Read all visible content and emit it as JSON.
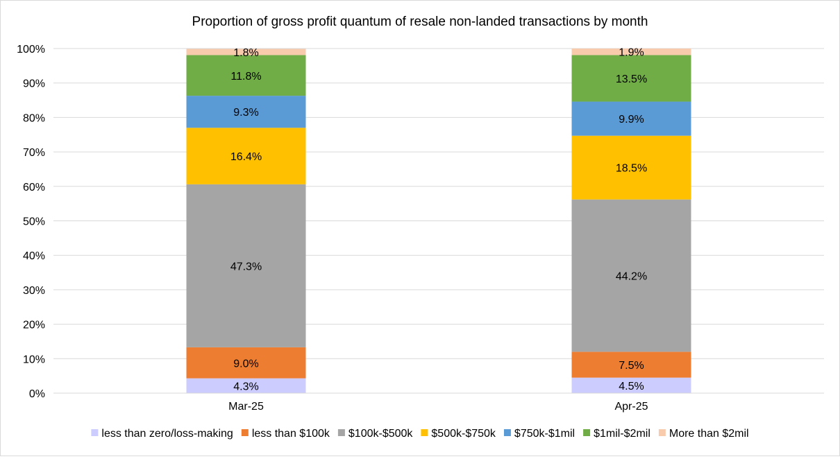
{
  "chart_data": {
    "type": "bar",
    "stacked": true,
    "title": "Proportion of gross profit quantum of resale non-landed transactions by month",
    "categories": [
      "Mar-25",
      "Apr-25"
    ],
    "ylim": [
      0,
      1
    ],
    "yticks": [
      "0%",
      "10%",
      "20%",
      "30%",
      "40%",
      "50%",
      "60%",
      "70%",
      "80%",
      "90%",
      "100%"
    ],
    "grid": true,
    "legend_position": "bottom",
    "series": [
      {
        "name": "less than zero/loss-making",
        "color": "#ccccff",
        "values": [
          0.043,
          0.045
        ],
        "labels": [
          "4.3%",
          "4.5%"
        ]
      },
      {
        "name": "less than $100k",
        "color": "#ed7d31",
        "values": [
          0.09,
          0.075
        ],
        "labels": [
          "9.0%",
          "7.5%"
        ]
      },
      {
        "name": "$100k-$500k",
        "color": "#a5a5a5",
        "values": [
          0.473,
          0.442
        ],
        "labels": [
          "47.3%",
          "44.2%"
        ]
      },
      {
        "name": "$500k-$750k",
        "color": "#ffc000",
        "values": [
          0.164,
          0.185
        ],
        "labels": [
          "16.4%",
          "18.5%"
        ]
      },
      {
        "name": "$750k-$1mil",
        "color": "#5b9bd5",
        "values": [
          0.093,
          0.099
        ],
        "labels": [
          "9.3%",
          "9.9%"
        ]
      },
      {
        "name": "$1mil-$2mil",
        "color": "#70ad47",
        "values": [
          0.118,
          0.135
        ],
        "labels": [
          "11.8%",
          "13.5%"
        ]
      },
      {
        "name": "More than $2mil",
        "color": "#f8cbad",
        "values": [
          0.018,
          0.019
        ],
        "labels": [
          "1.8%",
          "1.9%"
        ]
      }
    ]
  }
}
